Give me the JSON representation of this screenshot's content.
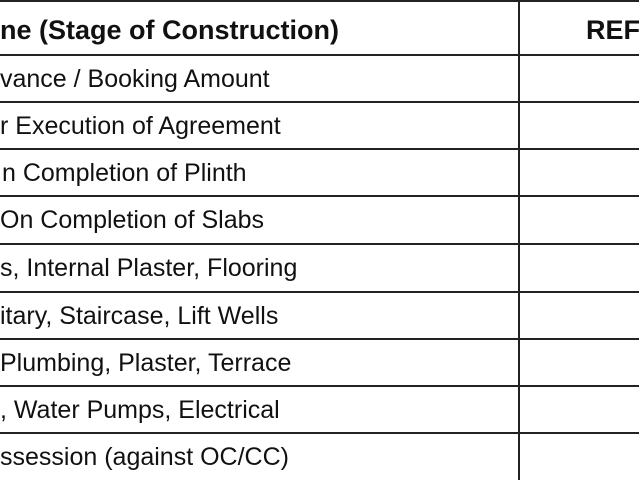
{
  "table": {
    "header": [
      "ne (Stage of Construction)",
      "REF"
    ],
    "rows": [
      [
        "vance / Booking Amount"
      ],
      [
        "r Execution of Agreement"
      ],
      [
        "n Completion of Plinth"
      ],
      [
        "On Completion of Slabs"
      ],
      [
        "s, Internal Plaster, Flooring"
      ],
      [
        "itary, Staircase, Lift Wells"
      ],
      [
        "Plumbing, Plaster, Terrace"
      ],
      [
        ", Water Pumps, Electrical"
      ],
      [
        "ssession (against OC/CC)"
      ]
    ]
  }
}
